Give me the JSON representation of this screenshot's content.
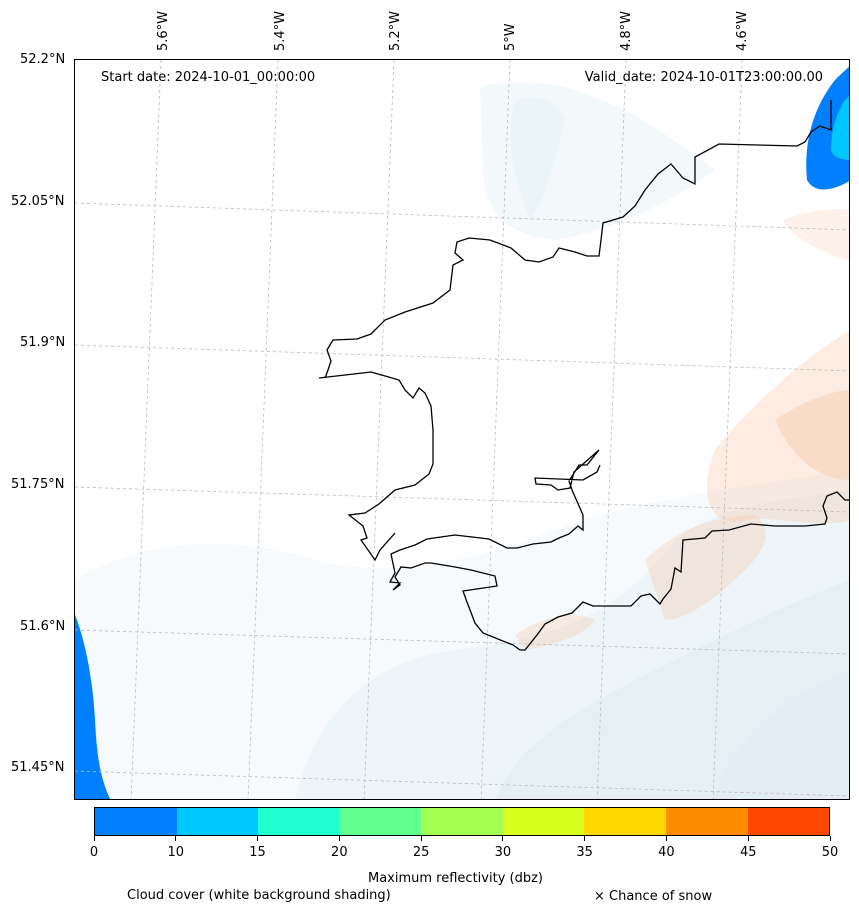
{
  "map": {
    "start_date": "Start date: 2024-10-01_00:00:00",
    "valid_date": "Valid_date: 2024-10-01T23:00:00.00",
    "lon_labels": [
      "5.6°W",
      "5.4°W",
      "5.2°W",
      "5°W",
      "4.8°W",
      "4.6°W"
    ],
    "lat_labels": [
      "52.2°N",
      "52.05°N",
      "51.9°N",
      "51.75°N",
      "51.6°N",
      "51.45°N"
    ]
  },
  "colorbar": {
    "ticks": [
      "0",
      "10",
      "15",
      "20",
      "25",
      "30",
      "35",
      "40",
      "45",
      "50"
    ],
    "colors": [
      "#0080ff",
      "#00c8ff",
      "#20ffd0",
      "#60ff90",
      "#a0ff50",
      "#d8ff20",
      "#ffd800",
      "#ff8c00",
      "#ff4800"
    ],
    "label": "Maximum reflectivity (dbz)"
  },
  "legend": {
    "cloud_cover": "Cloud cover (white background shading)",
    "snow": "× Chance of snow"
  },
  "colors": {
    "coastline": "#000000",
    "cloud": "#dcecf2",
    "warm_shade": "#f6c9a8",
    "radar_blue": "#0080ff",
    "radar_cyan": "#00c8ff"
  }
}
